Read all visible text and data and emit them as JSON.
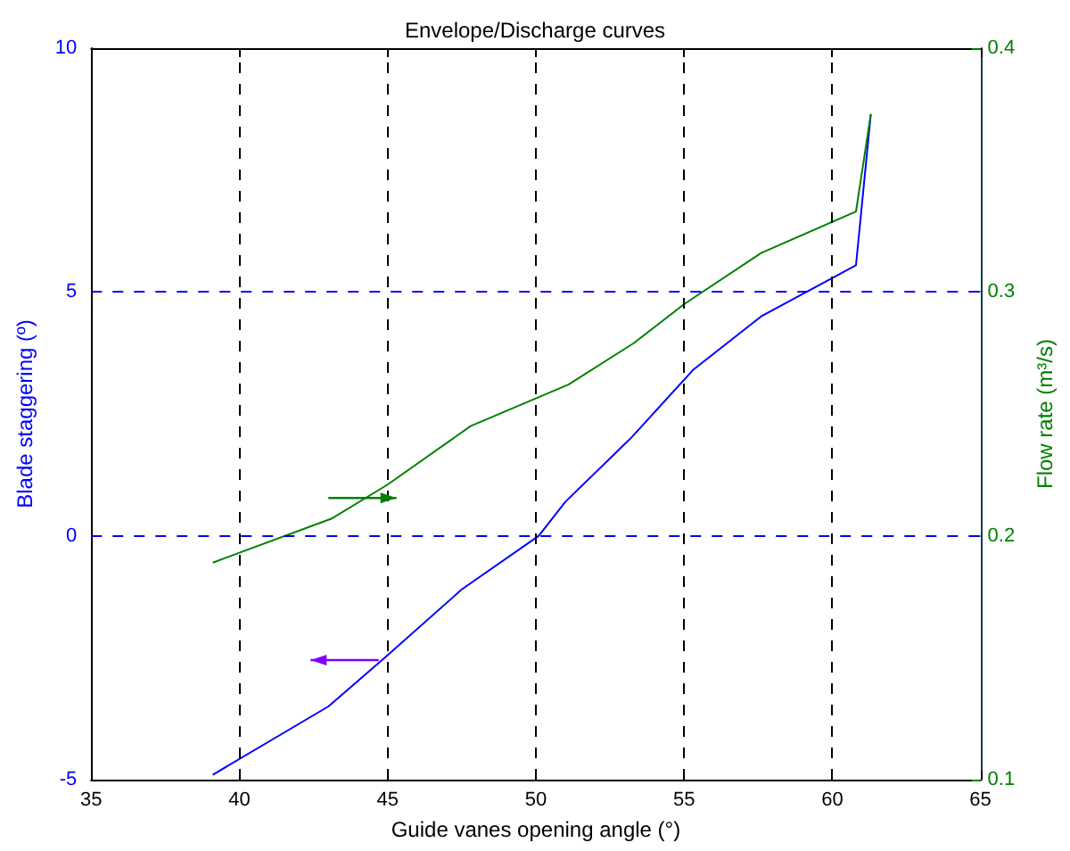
{
  "chart_data": {
    "type": "line",
    "title": "Envelope/Discharge curves",
    "xlabel": "Guide vanes opening angle (°)",
    "ylabel": "Blade staggering (º)",
    "y2label": "Flow rate (m³/s)",
    "series": [
      {
        "color": "#0000ff",
        "x": [
          39.1,
          43.0,
          45.0,
          47.5,
          50.1,
          51.0,
          53.2,
          55.3,
          57.6,
          60.8,
          61.3
        ],
        "values": [
          -4.9,
          -3.5,
          -2.45,
          -1.1,
          0.0,
          0.7,
          2.0,
          3.4,
          4.5,
          5.55,
          8.65
        ]
      },
      {
        "color": "#008000",
        "axis": "y2",
        "x": [
          39.1,
          43.1,
          45.0,
          47.8,
          51.1,
          53.3,
          55.0,
          57.6,
          60.8,
          61.3
        ],
        "values": [
          0.189,
          0.207,
          0.221,
          0.245,
          0.262,
          0.279,
          0.295,
          0.316,
          0.333,
          0.373
        ]
      }
    ],
    "xlim": [
      35,
      65
    ],
    "xticks": [
      35,
      40,
      45,
      50,
      55,
      60,
      65
    ],
    "ylim": [
      -5,
      10
    ],
    "yticks": [
      -5,
      0,
      5,
      10
    ],
    "y2lim": [
      0.1,
      0.4
    ],
    "y2ticks": [
      0.1,
      0.2,
      0.3,
      0.4
    ],
    "grid": true,
    "line_style": "solid",
    "marker": "none"
  }
}
